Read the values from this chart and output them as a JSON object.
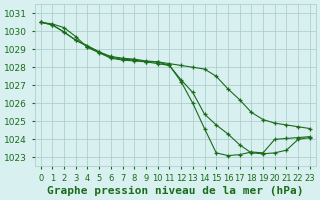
{
  "title": "Graphe pression niveau de la mer (hPa)",
  "hours": [
    0,
    1,
    2,
    3,
    4,
    5,
    6,
    7,
    8,
    9,
    10,
    11,
    12,
    13,
    14,
    15,
    16,
    17,
    18,
    19,
    20,
    21,
    22,
    23
  ],
  "s1": [
    1030.5,
    1030.4,
    1030.2,
    1029.7,
    1029.1,
    1028.8,
    1028.5,
    1028.4,
    1028.35,
    1028.3,
    1028.3,
    1028.2,
    1028.1,
    1028.0,
    1027.9,
    1027.5,
    1026.8,
    1026.2,
    1025.5,
    1025.1,
    1024.9,
    1024.8,
    1024.7,
    1024.6
  ],
  "s2": [
    1030.5,
    1030.35,
    1029.95,
    1029.5,
    1029.2,
    1028.85,
    1028.6,
    1028.5,
    1028.45,
    1028.35,
    1028.3,
    1028.1,
    1027.3,
    1026.6,
    1025.4,
    1024.8,
    1024.3,
    1023.7,
    1023.25,
    1023.2,
    1023.25,
    1023.4,
    1024.0,
    1024.1
  ],
  "s3": [
    1030.5,
    1030.35,
    1029.95,
    1029.5,
    1029.15,
    1028.85,
    1028.55,
    1028.45,
    1028.4,
    1028.3,
    1028.2,
    1028.1,
    1027.2,
    1026.0,
    1024.6,
    1023.25,
    1023.1,
    1023.15,
    1023.3,
    1023.25,
    1024.0,
    1024.05,
    1024.1,
    1024.15
  ],
  "ylim": [
    1022.5,
    1031.5
  ],
  "yticks": [
    1023,
    1024,
    1025,
    1026,
    1027,
    1028,
    1029,
    1030,
    1031
  ],
  "xlim": [
    -0.5,
    23.5
  ],
  "line_color": "#1a6b1a",
  "bg_color": "#d8f0f0",
  "grid_color": "#a8c8c8",
  "title_color": "#1a6b1a",
  "tick_color": "#1a6b1a",
  "title_fontsize": 8.0,
  "tick_fontsize": 6.5
}
